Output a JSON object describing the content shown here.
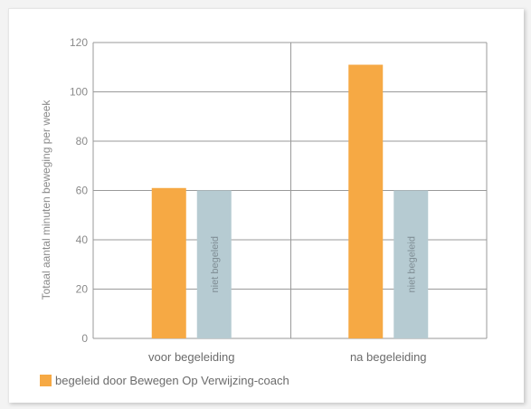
{
  "chart_data": {
    "type": "bar",
    "title": "",
    "xlabel": "",
    "ylabel": "Totaal aantal minuten beweging per week",
    "ylim": [
      0,
      120
    ],
    "yticks": [
      0,
      20,
      40,
      60,
      80,
      100,
      120
    ],
    "categories": [
      "voor begeleiding",
      "na begeleiding"
    ],
    "series": [
      {
        "name": "begeleid door Bewegen Op Verwijzing-coach",
        "color": "#f6a944",
        "values": [
          61,
          111
        ]
      },
      {
        "color": "#b6cbd2",
        "bar_label": "niet begeleid",
        "values": [
          60,
          60
        ]
      }
    ],
    "grid": true,
    "legend": {
      "placement": "bottom-left",
      "entries": [
        "begeleid door Bewegen Op Verwijzing-coach"
      ]
    }
  }
}
